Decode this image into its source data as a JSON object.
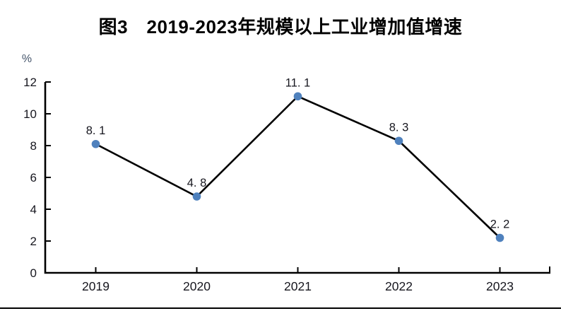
{
  "figure": {
    "title": "图3　2019-2023年规模以上工业增加值增速"
  },
  "chart_data": {
    "type": "line",
    "title": "图3　2019-2023年规模以上工业增加值增速",
    "categories": [
      "2019",
      "2020",
      "2021",
      "2022",
      "2023"
    ],
    "values": [
      8.1,
      4.8,
      11.1,
      8.3,
      2.2
    ],
    "point_labels": [
      "8. 1",
      "4. 8",
      "11. 1",
      "8. 3",
      "2. 2"
    ],
    "xlabel": "",
    "ylabel": "%",
    "ylim": [
      0,
      12
    ],
    "yticks": [
      0,
      2,
      4,
      6,
      8,
      10,
      12
    ],
    "grid": false,
    "legend": "none",
    "line_color": "#000000",
    "marker_color": "#4F81BD",
    "marker_shape": "circle",
    "axis_color": "#000000",
    "tick_label_color": "#16161e",
    "unit_label_color": "#44546A",
    "ticks_direction": "inside"
  }
}
